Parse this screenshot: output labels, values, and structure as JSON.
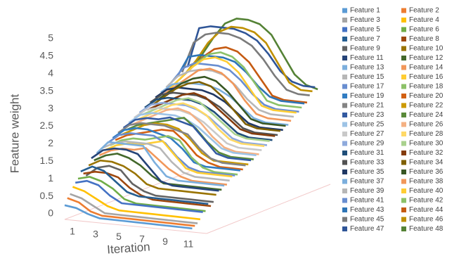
{
  "chart_data": {
    "type": "line3d",
    "y_axis_label": "Feature weight",
    "x_axis_label": "Iteration",
    "categories": [
      1,
      null,
      3,
      null,
      5,
      null,
      7,
      null,
      9,
      null,
      11,
      null
    ],
    "ylim": [
      0,
      5
    ],
    "yticks": [
      0,
      0.5,
      1,
      1.5,
      2,
      2.5,
      3,
      3.5,
      4,
      4.5,
      5
    ],
    "series": [
      {
        "name": "Feature 1",
        "color": "#5b9bd5",
        "values": [
          0.3,
          0.25,
          0.1,
          0,
          0,
          0,
          0,
          0,
          0,
          0,
          0,
          0
        ]
      },
      {
        "name": "Feature 2",
        "color": "#ed7d31",
        "values": [
          0.5,
          0.4,
          0.15,
          0.05,
          0.05,
          0.05,
          0.05,
          0.05,
          0.05,
          0.05,
          0.05,
          0.05
        ]
      },
      {
        "name": "Feature 3",
        "color": "#a5a5a5",
        "values": [
          0.6,
          0.5,
          0.3,
          0.1,
          0.1,
          0.1,
          0.1,
          0.1,
          0.1,
          0.1,
          0.1,
          0.1
        ]
      },
      {
        "name": "Feature 4",
        "color": "#ffc000",
        "values": [
          0.8,
          0.7,
          0.5,
          0.3,
          0.2,
          0.2,
          0.2,
          0.2,
          0.2,
          0.2,
          0.2,
          0.2
        ]
      },
      {
        "name": "Feature 5",
        "color": "#4472c4",
        "values": [
          0.9,
          1.0,
          0.9,
          0.6,
          0.4,
          0.4,
          0.4,
          0.4,
          0.4,
          0.4,
          0.4,
          0.4
        ]
      },
      {
        "name": "Feature 6",
        "color": "#70ad47",
        "values": [
          1.0,
          1.1,
          1.0,
          0.8,
          0.5,
          0.4,
          0.4,
          0.4,
          0.4,
          0.4,
          0.4,
          0.4
        ]
      },
      {
        "name": "Feature 7",
        "color": "#255e91",
        "values": [
          1.2,
          1.4,
          1.3,
          1.0,
          0.7,
          0.6,
          0.6,
          0.6,
          0.6,
          0.6,
          0.6,
          0.6
        ]
      },
      {
        "name": "Feature 8",
        "color": "#9e480e",
        "values": [
          1.1,
          1.2,
          1.2,
          1.1,
          0.8,
          0.6,
          0.5,
          0.5,
          0.5,
          0.5,
          0.5,
          0.5
        ]
      },
      {
        "name": "Feature 9",
        "color": "#636363",
        "values": [
          1.0,
          1.3,
          1.4,
          1.3,
          0.9,
          0.7,
          0.6,
          0.6,
          0.6,
          0.6,
          0.6,
          0.6
        ]
      },
      {
        "name": "Feature 10",
        "color": "#997300",
        "values": [
          1.3,
          1.5,
          1.5,
          1.4,
          1.2,
          0.9,
          0.8,
          0.8,
          0.8,
          0.8,
          0.8,
          0.8
        ]
      },
      {
        "name": "Feature 11",
        "color": "#264478",
        "values": [
          1.5,
          1.8,
          1.9,
          1.9,
          1.8,
          1.4,
          1.0,
          0.9,
          0.9,
          0.9,
          0.9,
          0.9
        ]
      },
      {
        "name": "Feature 12",
        "color": "#43682b",
        "values": [
          1.4,
          1.6,
          1.7,
          1.6,
          1.4,
          1.1,
          0.9,
          0.9,
          0.9,
          0.9,
          0.9,
          0.9
        ]
      },
      {
        "name": "Feature 13",
        "color": "#7cafdd",
        "values": [
          1.6,
          2.0,
          2.0,
          2.0,
          2.0,
          1.5,
          1.1,
          1.0,
          1.0,
          1.0,
          1.0,
          1.0
        ]
      },
      {
        "name": "Feature 14",
        "color": "#f1975a",
        "values": [
          1.5,
          1.7,
          1.8,
          1.8,
          1.9,
          1.6,
          1.3,
          1.1,
          1.0,
          1.0,
          1.0,
          1.0
        ]
      },
      {
        "name": "Feature 15",
        "color": "#b7b7b7",
        "values": [
          1.7,
          1.9,
          2.0,
          2.0,
          2.0,
          1.9,
          1.5,
          1.2,
          1.1,
          1.1,
          1.1,
          1.1
        ]
      },
      {
        "name": "Feature 16",
        "color": "#ffcd33",
        "values": [
          1.6,
          1.8,
          1.9,
          1.9,
          2.0,
          2.1,
          1.7,
          1.3,
          1.2,
          1.2,
          1.2,
          1.2
        ]
      },
      {
        "name": "Feature 17",
        "color": "#698ed0",
        "values": [
          1.8,
          2.1,
          2.2,
          2.2,
          2.2,
          2.0,
          1.6,
          1.3,
          1.2,
          1.2,
          1.2,
          1.2
        ]
      },
      {
        "name": "Feature 18",
        "color": "#8cc168",
        "values": [
          1.7,
          1.9,
          2.0,
          2.0,
          2.1,
          2.2,
          2.1,
          1.6,
          1.3,
          1.2,
          1.2,
          1.2
        ]
      },
      {
        "name": "Feature 19",
        "color": "#327dc2",
        "values": [
          1.9,
          2.2,
          2.3,
          2.3,
          2.2,
          2.1,
          1.8,
          1.4,
          1.3,
          1.3,
          1.3,
          1.3
        ]
      },
      {
        "name": "Feature 20",
        "color": "#d26012",
        "values": [
          1.8,
          2.0,
          2.1,
          2.2,
          2.3,
          2.3,
          2.0,
          1.6,
          1.4,
          1.3,
          1.3,
          1.3
        ]
      },
      {
        "name": "Feature 21",
        "color": "#848484",
        "values": [
          2.0,
          2.3,
          2.4,
          2.4,
          2.4,
          2.3,
          2.2,
          1.8,
          1.5,
          1.4,
          1.4,
          1.4
        ]
      },
      {
        "name": "Feature 22",
        "color": "#cc9a00",
        "values": [
          1.9,
          2.1,
          2.3,
          2.4,
          2.4,
          2.3,
          2.0,
          1.6,
          1.4,
          1.4,
          1.4,
          1.4
        ]
      },
      {
        "name": "Feature 23",
        "color": "#335aa1",
        "values": [
          2.1,
          2.4,
          2.5,
          2.5,
          2.6,
          2.5,
          2.4,
          2.0,
          1.6,
          1.5,
          1.5,
          1.5
        ]
      },
      {
        "name": "Feature 24",
        "color": "#5a8a39",
        "values": [
          2.0,
          2.2,
          2.3,
          2.4,
          2.5,
          2.6,
          2.3,
          1.9,
          1.6,
          1.5,
          1.5,
          1.5
        ]
      },
      {
        "name": "Feature 25",
        "color": "#9dc3e6",
        "values": [
          2.2,
          2.5,
          2.6,
          2.6,
          2.6,
          2.5,
          2.3,
          2.0,
          1.7,
          1.6,
          1.6,
          1.6
        ]
      },
      {
        "name": "Feature 26",
        "color": "#f4b183",
        "values": [
          2.1,
          2.3,
          2.5,
          2.7,
          2.8,
          2.7,
          2.4,
          2.0,
          1.7,
          1.6,
          1.6,
          1.6
        ]
      },
      {
        "name": "Feature 27",
        "color": "#c9c9c9",
        "values": [
          2.3,
          2.6,
          2.7,
          2.7,
          2.7,
          2.6,
          2.4,
          2.1,
          1.8,
          1.7,
          1.7,
          1.7
        ]
      },
      {
        "name": "Feature 28",
        "color": "#ffd966",
        "values": [
          2.2,
          2.4,
          2.6,
          2.8,
          2.9,
          2.8,
          2.6,
          2.2,
          1.9,
          1.8,
          1.8,
          1.8
        ]
      },
      {
        "name": "Feature 29",
        "color": "#8faadc",
        "values": [
          2.4,
          2.7,
          2.8,
          2.8,
          2.8,
          2.7,
          2.5,
          2.2,
          1.9,
          1.8,
          1.8,
          1.8
        ]
      },
      {
        "name": "Feature 30",
        "color": "#a9d18e",
        "values": [
          2.3,
          2.5,
          2.7,
          2.9,
          3.0,
          2.9,
          2.6,
          2.3,
          2.0,
          1.9,
          1.9,
          1.9
        ]
      },
      {
        "name": "Feature 31",
        "color": "#1f4e79",
        "values": [
          2.5,
          2.8,
          2.9,
          2.9,
          2.9,
          2.8,
          2.6,
          2.3,
          2.0,
          1.9,
          1.9,
          1.9
        ]
      },
      {
        "name": "Feature 32",
        "color": "#843c0c",
        "values": [
          2.4,
          2.6,
          2.8,
          3.0,
          3.1,
          3.0,
          2.7,
          2.4,
          2.1,
          2.0,
          2.0,
          2.0
        ]
      },
      {
        "name": "Feature 33",
        "color": "#525252",
        "values": [
          2.6,
          2.9,
          3.0,
          3.0,
          3.0,
          2.9,
          2.7,
          2.4,
          2.1,
          2.0,
          2.0,
          2.0
        ]
      },
      {
        "name": "Feature 34",
        "color": "#7f6000",
        "values": [
          2.5,
          2.8,
          3.1,
          3.3,
          3.4,
          3.3,
          3.0,
          2.6,
          2.2,
          2.1,
          2.1,
          2.1
        ]
      },
      {
        "name": "Feature 35",
        "color": "#203864",
        "values": [
          2.7,
          3.0,
          3.1,
          3.1,
          3.1,
          3.0,
          2.8,
          2.5,
          2.2,
          2.1,
          2.1,
          2.1
        ]
      },
      {
        "name": "Feature 36",
        "color": "#385723",
        "values": [
          2.6,
          2.9,
          3.2,
          3.4,
          3.5,
          3.4,
          3.1,
          2.7,
          2.3,
          2.2,
          2.2,
          2.2
        ]
      },
      {
        "name": "Feature 37",
        "color": "#7cafdd",
        "values": [
          2.8,
          3.1,
          3.2,
          3.2,
          3.2,
          3.1,
          2.9,
          2.6,
          2.3,
          2.2,
          2.2,
          2.2
        ]
      },
      {
        "name": "Feature 38",
        "color": "#f1975a",
        "values": [
          2.7,
          3.0,
          3.3,
          3.6,
          3.7,
          3.6,
          3.3,
          2.8,
          2.4,
          2.3,
          2.3,
          2.3
        ]
      },
      {
        "name": "Feature 39",
        "color": "#b7b7b7",
        "values": [
          2.9,
          3.3,
          3.5,
          3.6,
          3.6,
          3.5,
          3.2,
          2.8,
          2.5,
          2.4,
          2.4,
          2.4
        ]
      },
      {
        "name": "Feature 40",
        "color": "#ffcd33",
        "values": [
          2.8,
          3.2,
          3.6,
          3.9,
          4.0,
          3.9,
          3.6,
          3.1,
          2.6,
          2.5,
          2.5,
          2.5
        ]
      },
      {
        "name": "Feature 41",
        "color": "#698ed0",
        "values": [
          3.0,
          3.5,
          3.7,
          3.7,
          3.7,
          3.6,
          3.3,
          2.9,
          2.6,
          2.5,
          2.5,
          2.5
        ]
      },
      {
        "name": "Feature 42",
        "color": "#8cc168",
        "values": [
          2.9,
          3.3,
          3.7,
          4.0,
          4.1,
          4.0,
          3.7,
          3.2,
          2.7,
          2.6,
          2.6,
          2.6
        ]
      },
      {
        "name": "Feature 43",
        "color": "#2e75b6",
        "values": [
          3.1,
          3.8,
          3.9,
          3.9,
          3.9,
          3.8,
          3.5,
          3.1,
          2.8,
          2.7,
          2.7,
          2.7
        ]
      },
      {
        "name": "Feature 44",
        "color": "#c55a11",
        "values": [
          3.0,
          3.4,
          3.8,
          4.1,
          4.2,
          4.1,
          3.8,
          3.3,
          2.8,
          2.7,
          2.7,
          2.7
        ]
      },
      {
        "name": "Feature 45",
        "color": "#7b7b7b",
        "values": [
          3.2,
          4.2,
          4.5,
          4.6,
          4.6,
          4.5,
          4.3,
          3.9,
          3.4,
          3.0,
          2.9,
          2.9
        ]
      },
      {
        "name": "Feature 46",
        "color": "#bf9000",
        "values": [
          3.1,
          3.6,
          4.2,
          4.6,
          4.8,
          4.8,
          4.7,
          4.4,
          3.8,
          3.2,
          3.0,
          3.0
        ]
      },
      {
        "name": "Feature 47",
        "color": "#2f5597",
        "values": [
          3.3,
          4.6,
          4.7,
          4.7,
          4.7,
          4.6,
          4.4,
          4.0,
          3.5,
          3.2,
          3.1,
          3.1
        ]
      },
      {
        "name": "Feature 48",
        "color": "#548235",
        "values": [
          3.2,
          3.7,
          4.3,
          4.8,
          5.0,
          5.0,
          4.9,
          4.6,
          4.0,
          3.4,
          3.1,
          3.0
        ]
      }
    ]
  }
}
